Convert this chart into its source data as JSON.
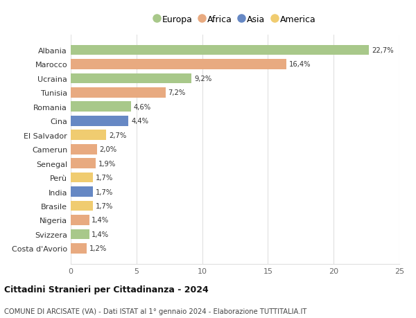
{
  "countries": [
    "Albania",
    "Marocco",
    "Ucraina",
    "Tunisia",
    "Romania",
    "Cina",
    "El Salvador",
    "Camerun",
    "Senegal",
    "Perù",
    "India",
    "Brasile",
    "Nigeria",
    "Svizzera",
    "Costa d'Avorio"
  ],
  "values": [
    22.7,
    16.4,
    9.2,
    7.2,
    4.6,
    4.4,
    2.7,
    2.0,
    1.9,
    1.7,
    1.7,
    1.7,
    1.4,
    1.4,
    1.2
  ],
  "continents": [
    "Europa",
    "Africa",
    "Europa",
    "Africa",
    "Europa",
    "Asia",
    "America",
    "Africa",
    "Africa",
    "America",
    "Asia",
    "America",
    "Africa",
    "Europa",
    "Africa"
  ],
  "colors": {
    "Europa": "#a8c88a",
    "Africa": "#e8aa80",
    "Asia": "#6688c4",
    "America": "#f0cc70"
  },
  "legend_order": [
    "Europa",
    "Africa",
    "Asia",
    "America"
  ],
  "title": "Cittadini Stranieri per Cittadinanza - 2024",
  "subtitle": "COMUNE DI ARCISATE (VA) - Dati ISTAT al 1° gennaio 2024 - Elaborazione TUTTITALIA.IT",
  "xlim": [
    0,
    25
  ],
  "xticks": [
    0,
    5,
    10,
    15,
    20,
    25
  ],
  "background_color": "#ffffff",
  "grid_color": "#e0e0e0",
  "bar_height": 0.72
}
